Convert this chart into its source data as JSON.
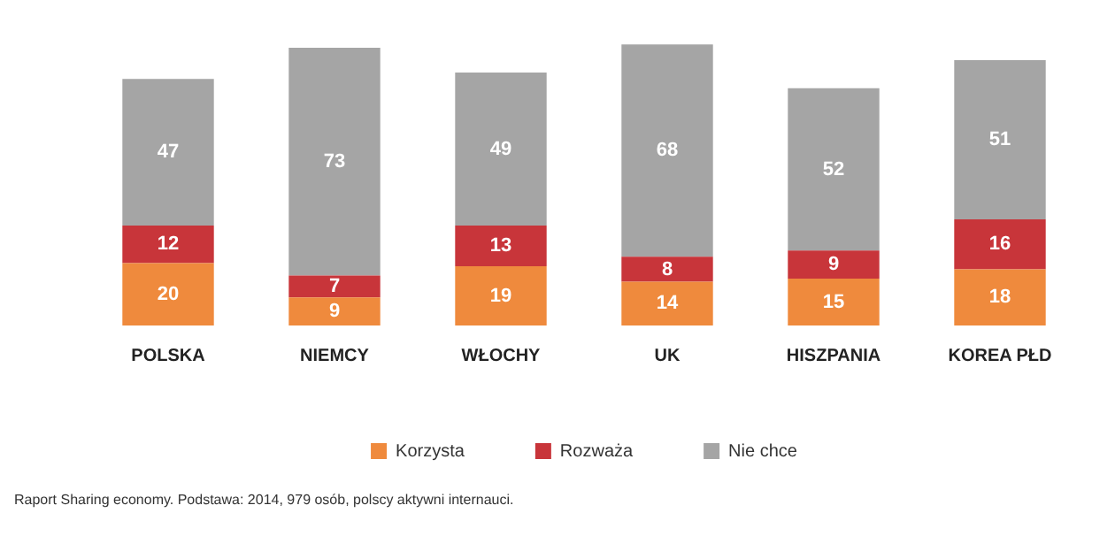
{
  "chart_data": {
    "type": "bar",
    "stacked": true,
    "data_labels": true,
    "legend": "bottom",
    "categories": [
      "POLSKA",
      "NIEMCY",
      "WŁOCHY",
      "UK",
      "HISZPANIA",
      "KOREA PŁD"
    ],
    "series": [
      {
        "name": "Korzysta",
        "color": "#ef8a3d",
        "values": [
          20,
          9,
          19,
          14,
          15,
          18
        ]
      },
      {
        "name": "Rozważa",
        "color": "#c8353a",
        "values": [
          12,
          7,
          13,
          8,
          9,
          16
        ]
      },
      {
        "name": "Nie chce",
        "color": "#a5a5a5",
        "values": [
          47,
          73,
          49,
          68,
          52,
          51
        ]
      }
    ],
    "annotations": [
      "Raport Sharing economy. Podstawa: 2014, 979 osób, polscy aktywni internauci."
    ]
  }
}
